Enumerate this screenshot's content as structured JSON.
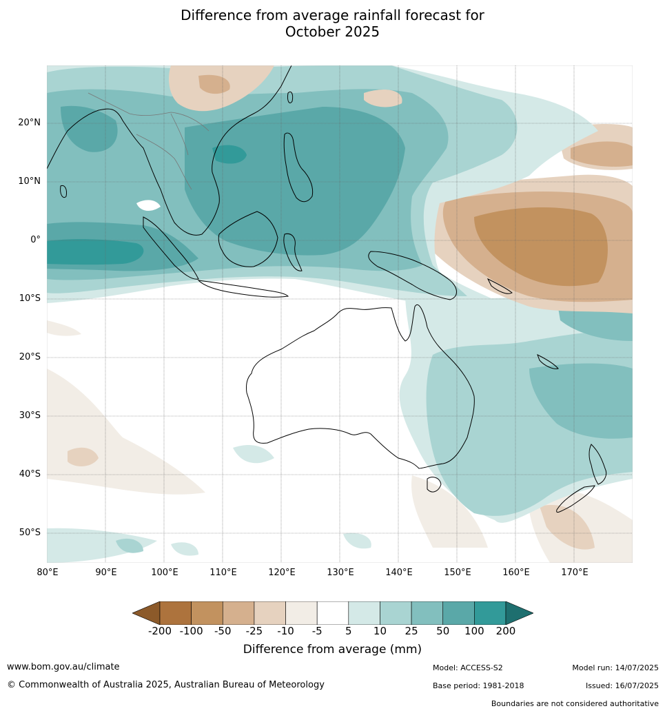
{
  "title_line1": "Difference from average rainfall forecast for",
  "title_line2": "October 2025",
  "lat_labels": [
    "20°N",
    "10°N",
    "0°",
    "10°S",
    "20°S",
    "30°S",
    "40°S",
    "50°S"
  ],
  "lon_labels": [
    "80°E",
    "90°E",
    "100°E",
    "110°E",
    "120°E",
    "130°E",
    "140°E",
    "150°E",
    "160°E",
    "170°E"
  ],
  "colorbar": {
    "ticks": [
      "-200",
      "-100",
      "-50",
      "-25",
      "-10",
      "-5",
      "5",
      "10",
      "25",
      "50",
      "100",
      "200"
    ],
    "colors": [
      "#8c5a2a",
      "#ad733d",
      "#c2925f",
      "#d5b08e",
      "#e6d2bf",
      "#f2ede6",
      "#ffffff",
      "#d4e9e7",
      "#a9d4d2",
      "#82bfbe",
      "#5aa8a8",
      "#329a99",
      "#1e6f6f"
    ],
    "label": "Difference from average (mm)"
  },
  "footer": {
    "url": "www.bom.gov.au/climate",
    "copyright": "© Commonwealth of Australia 2025, Australian Bureau of Meteorology",
    "model": "Model: ACCESS-S2",
    "base_period": "Base period: 1981-2018",
    "model_run": "Model run: 14/07/2025",
    "issued": "Issued: 16/07/2025",
    "disclaimer": "Boundaries are not considered authoritative"
  }
}
